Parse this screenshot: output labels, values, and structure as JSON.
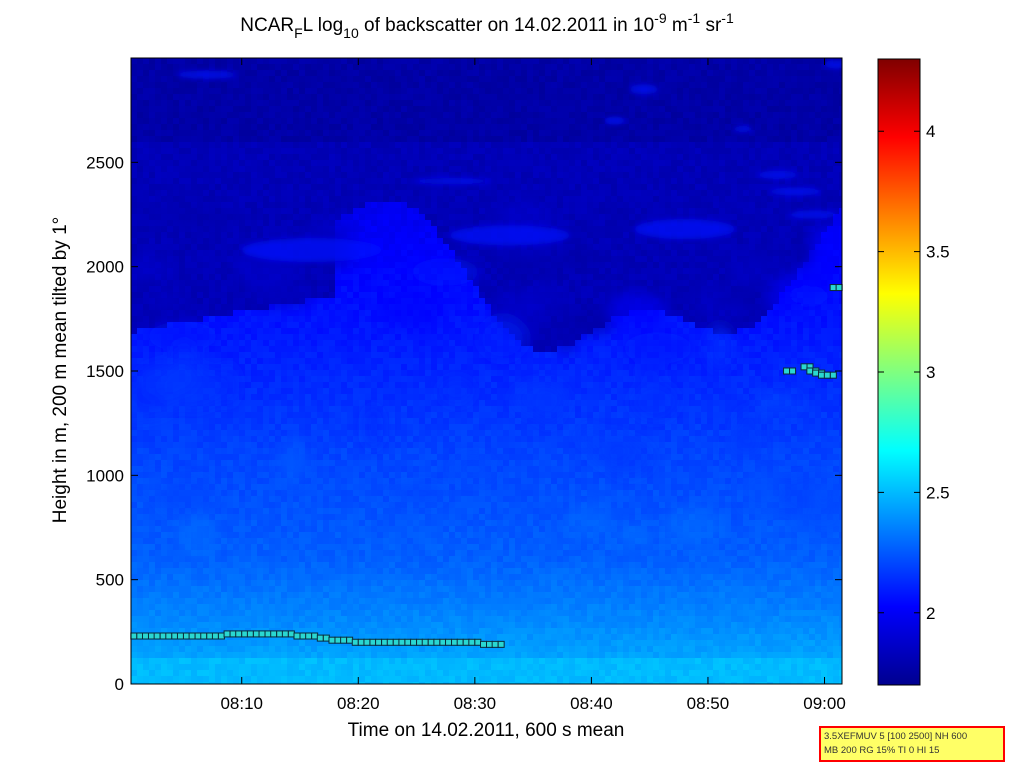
{
  "chart_data": {
    "type": "heatmap",
    "title": {
      "main": "NCAR",
      "main_sub": "F",
      "after_sub": "L log",
      "log_sub": "10",
      "rest": " of backscatter on 14.02.2011 in 10",
      "exp1": "-9",
      "unit1": " m",
      "exp2": "-1",
      "unit2": " sr",
      "exp3": "-1"
    },
    "xlabel": "Time on 14.02.2011, 600 s mean",
    "ylabel": "Height in m, 200 m mean tilted by 1°",
    "x_range_minutes": [
      480.5,
      541.5
    ],
    "x_ticks": [
      {
        "value": 490,
        "label": "08:10"
      },
      {
        "value": 500,
        "label": "08:20"
      },
      {
        "value": 510,
        "label": "08:30"
      },
      {
        "value": 520,
        "label": "08:40"
      },
      {
        "value": 530,
        "label": "08:50"
      },
      {
        "value": 540,
        "label": "09:00"
      }
    ],
    "ylim": [
      0,
      3000
    ],
    "y_ticks": [
      0,
      500,
      1000,
      1500,
      2000,
      2500
    ],
    "colorbar": {
      "range": [
        1.7,
        4.3
      ],
      "ticks": [
        {
          "value": 2,
          "label": "2"
        },
        {
          "value": 2.5,
          "label": "2.5"
        },
        {
          "value": 3,
          "label": "3"
        },
        {
          "value": 3.5,
          "label": "3.5"
        },
        {
          "value": 4,
          "label": "4"
        }
      ],
      "colormap": "jet"
    },
    "field_description_levels": [
      {
        "height_max": 300,
        "value": 2.42
      },
      {
        "height_max": 500,
        "value": 2.32
      },
      {
        "height_max": 1000,
        "value": 2.2
      },
      {
        "height_max": 1500,
        "value": 2.08
      },
      {
        "height_max": 2000,
        "value": 1.98
      },
      {
        "height_max": 3000,
        "value": 1.82
      }
    ],
    "boundary_markers": [
      {
        "x": 481,
        "y": 230
      },
      {
        "x": 482,
        "y": 230
      },
      {
        "x": 483,
        "y": 230
      },
      {
        "x": 484,
        "y": 230
      },
      {
        "x": 485,
        "y": 230
      },
      {
        "x": 486,
        "y": 230
      },
      {
        "x": 487,
        "y": 230
      },
      {
        "x": 488,
        "y": 230
      },
      {
        "x": 489,
        "y": 240
      },
      {
        "x": 490,
        "y": 240
      },
      {
        "x": 491,
        "y": 240
      },
      {
        "x": 492,
        "y": 240
      },
      {
        "x": 493,
        "y": 240
      },
      {
        "x": 494,
        "y": 240
      },
      {
        "x": 495,
        "y": 230
      },
      {
        "x": 496,
        "y": 230
      },
      {
        "x": 497,
        "y": 220
      },
      {
        "x": 498,
        "y": 210
      },
      {
        "x": 499,
        "y": 210
      },
      {
        "x": 500,
        "y": 200
      },
      {
        "x": 501,
        "y": 200
      },
      {
        "x": 502,
        "y": 200
      },
      {
        "x": 503,
        "y": 200
      },
      {
        "x": 504,
        "y": 200
      },
      {
        "x": 505,
        "y": 200
      },
      {
        "x": 506,
        "y": 200
      },
      {
        "x": 507,
        "y": 200
      },
      {
        "x": 508,
        "y": 200
      },
      {
        "x": 509,
        "y": 200
      },
      {
        "x": 510,
        "y": 200
      },
      {
        "x": 511,
        "y": 190
      },
      {
        "x": 512,
        "y": 190
      },
      {
        "x": 537,
        "y": 1500
      },
      {
        "x": 538.5,
        "y": 1520
      },
      {
        "x": 539,
        "y": 1500
      },
      {
        "x": 539.5,
        "y": 1490
      },
      {
        "x": 540,
        "y": 1480
      },
      {
        "x": 540.5,
        "y": 1480
      },
      {
        "x": 541,
        "y": 1900
      }
    ]
  },
  "info_box": {
    "line1": "3.5XEFMUV 5 [100 2500] NH 600",
    "line2": "MB 200 RG 15% TI 0 HI 15"
  },
  "colors": {
    "marker_fill": "#2ad7d1",
    "marker_edge": "#0a2a3a",
    "background": "#ffffff",
    "info_box_bg": "#ffff66",
    "info_box_border": "#ff0000"
  }
}
